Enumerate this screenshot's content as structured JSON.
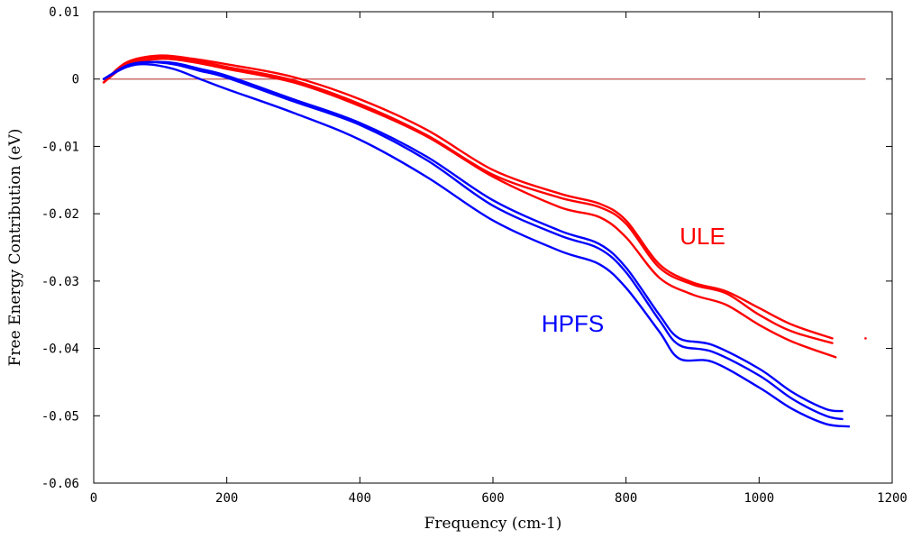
{
  "chart_data": {
    "type": "line",
    "title": "",
    "xlabel": "Frequency (cm-1)",
    "ylabel": "Free Energy Contribution (eV)",
    "xlim": [
      0,
      1200
    ],
    "ylim": [
      -0.06,
      0.01
    ],
    "xticks": [
      0,
      200,
      400,
      600,
      800,
      1000,
      1200
    ],
    "yticks": [
      -0.06,
      -0.05,
      -0.04,
      -0.03,
      -0.02,
      -0.01,
      0,
      0.01
    ],
    "xtick_labels": [
      "0",
      "200",
      "400",
      "600",
      "800",
      "1000",
      "1200"
    ],
    "ytick_labels": [
      "-0.06",
      "-0.05",
      "-0.04",
      "-0.03",
      "-0.02",
      "-0.01",
      "0",
      "0.01"
    ],
    "grid": false,
    "reference_line": {
      "y": 0,
      "x_range": [
        20,
        1160
      ],
      "color": "#c0504d"
    },
    "annotations": [
      {
        "text": "ULE",
        "x": 915,
        "y": -0.0245,
        "color": "#ff0000"
      },
      {
        "text": "HPFS",
        "x": 720,
        "y": -0.0375,
        "color": "#0000ff"
      }
    ],
    "series": [
      {
        "group": "ULE",
        "color": "#ff0000",
        "x": [
          15,
          50,
          100,
          150,
          200,
          300,
          400,
          500,
          600,
          700,
          760,
          800,
          850,
          900,
          950,
          1000,
          1050,
          1110
        ],
        "y": [
          -0.0005,
          0.0025,
          0.0035,
          0.003,
          0.0022,
          0.0003,
          -0.003,
          -0.0075,
          -0.0135,
          -0.017,
          -0.0185,
          -0.021,
          -0.0275,
          -0.0302,
          -0.0315,
          -0.034,
          -0.0365,
          -0.0385
        ]
      },
      {
        "group": "ULE",
        "color": "#ff0000",
        "x": [
          15,
          50,
          100,
          150,
          200,
          300,
          400,
          500,
          600,
          700,
          760,
          800,
          850,
          900,
          950,
          1000,
          1050,
          1110
        ],
        "y": [
          -0.0005,
          0.0023,
          0.0033,
          0.0028,
          0.0018,
          -0.0002,
          -0.0037,
          -0.0083,
          -0.0142,
          -0.0176,
          -0.019,
          -0.0215,
          -0.028,
          -0.0305,
          -0.0318,
          -0.035,
          -0.0375,
          -0.0392
        ]
      },
      {
        "group": "ULE",
        "color": "#ff0000",
        "x": [
          15,
          50,
          100,
          150,
          200,
          300,
          400,
          500,
          600,
          700,
          760,
          800,
          850,
          900,
          950,
          1000,
          1050,
          1115
        ],
        "y": [
          -0.0005,
          0.002,
          0.003,
          0.0025,
          0.0015,
          -0.0005,
          -0.004,
          -0.0085,
          -0.0145,
          -0.019,
          -0.0205,
          -0.0235,
          -0.0295,
          -0.032,
          -0.0335,
          -0.0365,
          -0.039,
          -0.0413
        ]
      },
      {
        "group": "HPFS",
        "color": "#0000ff",
        "x": [
          15,
          50,
          80,
          120,
          160,
          200,
          300,
          400,
          500,
          600,
          700,
          760,
          800,
          850,
          880,
          930,
          1000,
          1050,
          1100,
          1125
        ],
        "y": [
          0.0,
          0.002,
          0.0025,
          0.0024,
          0.0015,
          0.0005,
          -0.003,
          -0.0065,
          -0.0115,
          -0.018,
          -0.0225,
          -0.0245,
          -0.028,
          -0.035,
          -0.0385,
          -0.0395,
          -0.043,
          -0.0465,
          -0.049,
          -0.0493
        ]
      },
      {
        "group": "HPFS",
        "color": "#0000ff",
        "x": [
          15,
          50,
          80,
          120,
          160,
          200,
          300,
          400,
          500,
          600,
          700,
          760,
          800,
          850,
          880,
          930,
          1000,
          1050,
          1100,
          1125
        ],
        "y": [
          0.0,
          0.002,
          0.0025,
          0.0022,
          0.0012,
          0.0002,
          -0.0033,
          -0.0068,
          -0.012,
          -0.0188,
          -0.0232,
          -0.0252,
          -0.0287,
          -0.0358,
          -0.0395,
          -0.0405,
          -0.044,
          -0.0475,
          -0.05,
          -0.0505
        ]
      },
      {
        "group": "HPFS",
        "color": "#0000ff",
        "x": [
          15,
          50,
          80,
          120,
          160,
          200,
          300,
          400,
          500,
          600,
          700,
          760,
          800,
          850,
          880,
          930,
          1000,
          1050,
          1100,
          1135
        ],
        "y": [
          0.0,
          0.0018,
          0.0022,
          0.0015,
          0.0,
          -0.0015,
          -0.005,
          -0.009,
          -0.0145,
          -0.021,
          -0.0255,
          -0.0275,
          -0.031,
          -0.0375,
          -0.0415,
          -0.042,
          -0.0458,
          -0.049,
          -0.0512,
          -0.0516
        ]
      }
    ]
  }
}
